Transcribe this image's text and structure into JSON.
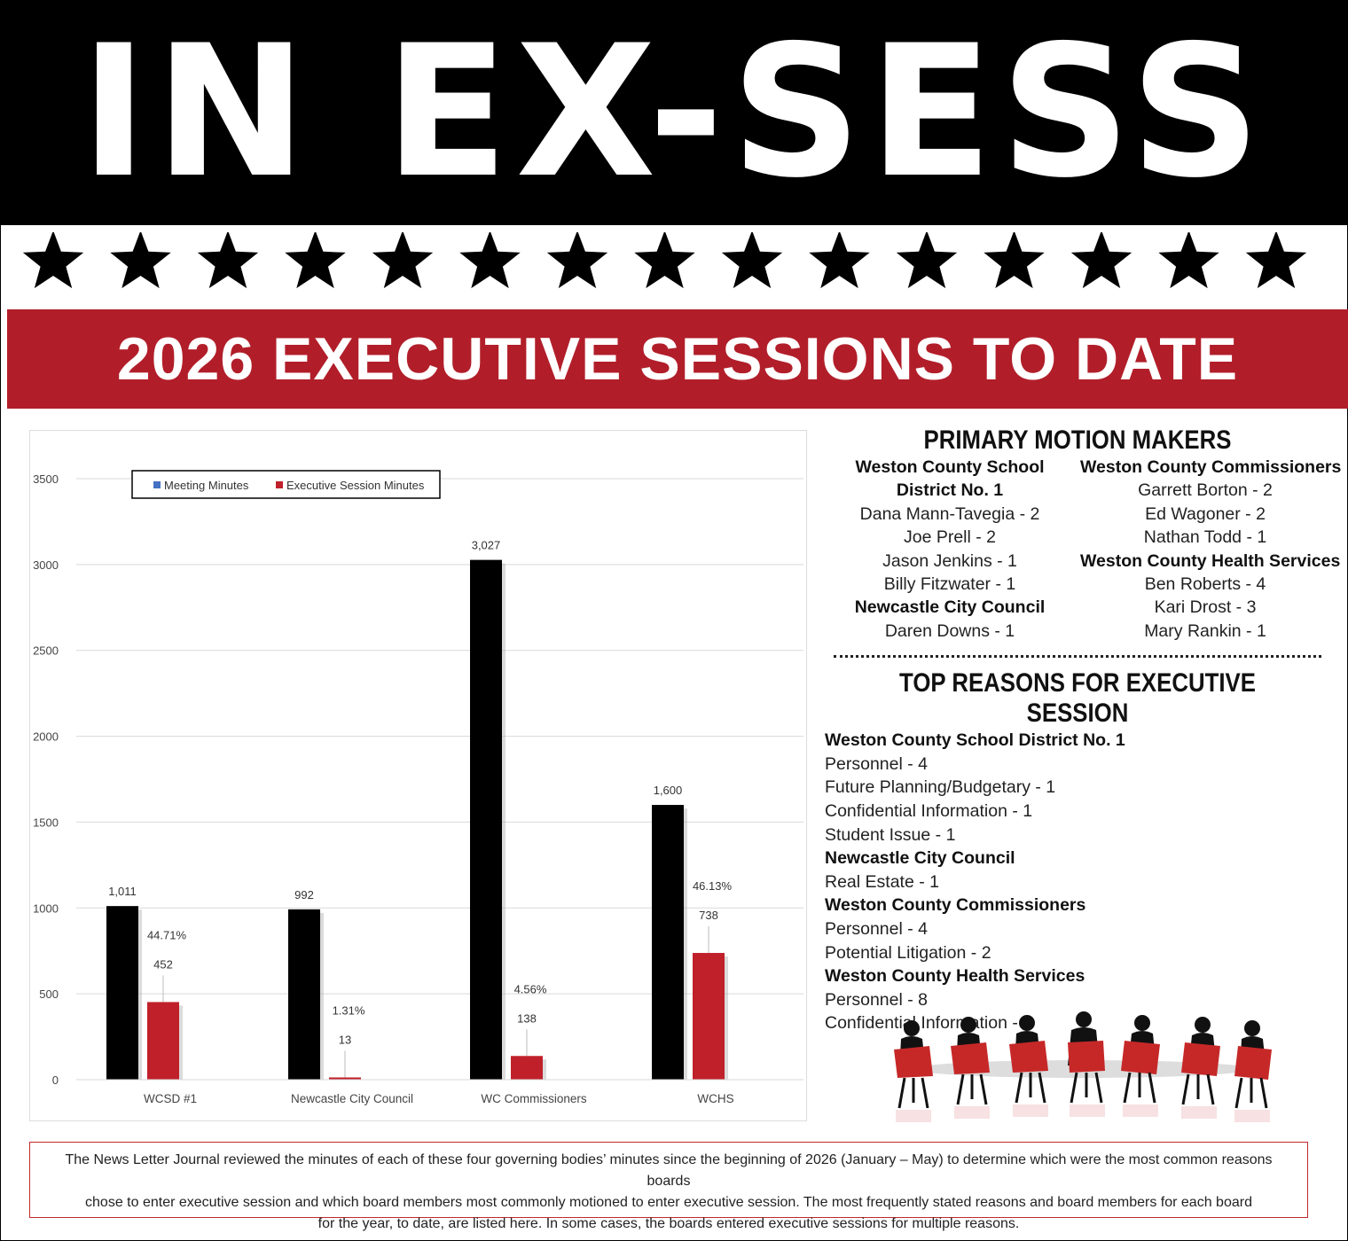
{
  "banner": {
    "title": "IN EX-SESS"
  },
  "header": {
    "title": "2026 EXECUTIVE SESSIONS TO DATE"
  },
  "colors": {
    "accent_red": "#b11e29",
    "bar_black": "#000000",
    "bar_red": "#c0202a",
    "legend_blue": "#4472c4"
  },
  "chart_data": {
    "type": "bar",
    "categories": [
      "WCSD #1",
      "Newcastle City Council",
      "WC Commissioners",
      "WCHS"
    ],
    "series": [
      {
        "name": "Meeting Minutes",
        "values": [
          1011,
          992,
          3027,
          1600
        ],
        "labels": [
          "1,011",
          "992",
          "3,027",
          "1,600"
        ]
      },
      {
        "name": "Executive Session Minutes",
        "values": [
          452,
          13,
          138,
          738
        ],
        "labels": [
          "452",
          "13",
          "138",
          "738"
        ]
      }
    ],
    "percent_labels": [
      "44.71%",
      "1.31%",
      "4.56%",
      "46.13%"
    ],
    "y_ticks": [
      "0",
      "500",
      "1000",
      "1500",
      "2000",
      "2500",
      "3000",
      "3500"
    ],
    "ylim": [
      0,
      3500
    ],
    "grid": true,
    "legend": "top-left"
  },
  "motion_makers": {
    "title": "PRIMARY MOTION MAKERS",
    "left": [
      {
        "text": "Weston County School",
        "bold": true
      },
      {
        "text": "District No. 1",
        "bold": true
      },
      {
        "text": "Dana Mann-Tavegia - 2",
        "bold": false
      },
      {
        "text": "Joe Prell - 2",
        "bold": false
      },
      {
        "text": "Jason Jenkins - 1",
        "bold": false
      },
      {
        "text": "Billy Fitzwater - 1",
        "bold": false
      },
      {
        "text": "Newcastle City Council",
        "bold": true
      },
      {
        "text": "Daren Downs - 1",
        "bold": false
      }
    ],
    "right": [
      {
        "text": "Weston County Commissioners",
        "bold": true
      },
      {
        "text": "Garrett Borton - 2",
        "bold": false
      },
      {
        "text": "Ed Wagoner - 2",
        "bold": false
      },
      {
        "text": "Nathan Todd - 1",
        "bold": false
      },
      {
        "text": "Weston County Health Services",
        "bold": true
      },
      {
        "text": "Ben Roberts - 4",
        "bold": false
      },
      {
        "text": "Kari Drost - 3",
        "bold": false
      },
      {
        "text": "Mary Rankin - 1",
        "bold": false
      }
    ]
  },
  "reasons": {
    "title": "TOP REASONS FOR EXECUTIVE SESSION",
    "lines": [
      {
        "text": "Weston County School District No. 1",
        "bold": true
      },
      {
        "text": "Personnel - 4",
        "bold": false
      },
      {
        "text": "Future Planning/Budgetary - 1",
        "bold": false
      },
      {
        "text": "Confidential Information - 1",
        "bold": false
      },
      {
        "text": "Student Issue - 1",
        "bold": false
      },
      {
        "text": "Newcastle City Council",
        "bold": true
      },
      {
        "text": "Real Estate - 1",
        "bold": false
      },
      {
        "text": "Weston County Commissioners",
        "bold": true
      },
      {
        "text": "Personnel - 4",
        "bold": false
      },
      {
        "text": "Potential Litigation - 2",
        "bold": false
      },
      {
        "text": "Weston County Health Services",
        "bold": true
      },
      {
        "text": "Personnel - 8",
        "bold": false
      },
      {
        "text": "Confidential Information - 8",
        "bold": false
      }
    ]
  },
  "footer_note": {
    "lines": [
      "The News Letter Journal reviewed the minutes of each of these four governing bodies’ minutes since the beginning of 2026 (January – May)  to determine which were the most common reasons boards",
      "chose to enter executive session and which board members most commonly motioned to enter executive session. The most frequently stated reasons and board members for each board",
      "for the year, to date, are listed here.  In some cases, the boards entered executive sessions for multiple reasons."
    ]
  }
}
